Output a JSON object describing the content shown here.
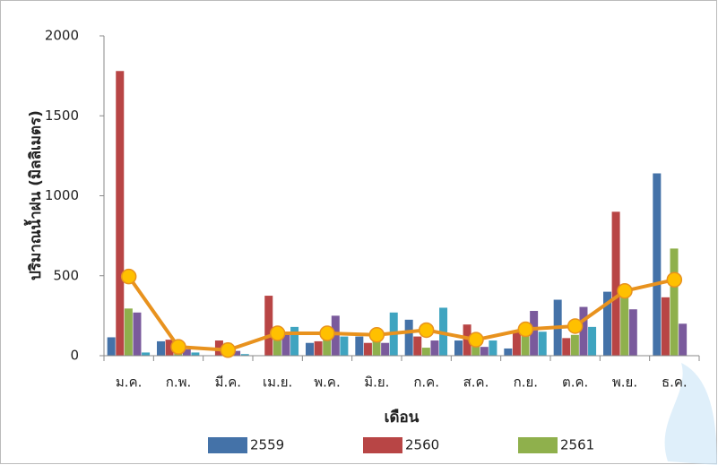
{
  "chart_data": {
    "type": "bar",
    "xlabel": "เดือน",
    "ylabel": "ปริมาณน้ำฝน (มิลลิเมตร)",
    "categories": [
      "ม.ค.",
      "ก.พ.",
      "มี.ค.",
      "เม.ย.",
      "พ.ค.",
      "มิ.ย.",
      "ก.ค.",
      "ส.ค.",
      "ก.ย.",
      "ต.ค.",
      "พ.ย.",
      "ธ.ค."
    ],
    "series": [
      {
        "name": "2559",
        "color": "#4472a8",
        "values": [
          115,
          90,
          0,
          0,
          80,
          120,
          225,
          95,
          45,
          350,
          400,
          1140
        ]
      },
      {
        "name": "2560",
        "color": "#b84545",
        "values": [
          1780,
          100,
          95,
          375,
          90,
          80,
          120,
          195,
          150,
          110,
          900,
          365
        ]
      },
      {
        "name": "2561",
        "color": "#8fb04c",
        "values": [
          295,
          50,
          80,
          100,
          110,
          100,
          50,
          60,
          160,
          130,
          390,
          670
        ]
      },
      {
        "color": "#7a5a9c",
        "values": [
          270,
          40,
          30,
          130,
          250,
          80,
          95,
          55,
          280,
          305,
          290,
          200
        ]
      },
      {
        "color": "#3fa4c0",
        "values": [
          20,
          20,
          10,
          180,
          120,
          270,
          300,
          95,
          150,
          180,
          0,
          0
        ]
      },
      {
        "type": "line",
        "color": "#e8921e",
        "marker_color": "#ffc000",
        "values": [
          495,
          55,
          35,
          140,
          140,
          130,
          160,
          100,
          165,
          185,
          405,
          475
        ]
      }
    ],
    "ylim": [
      0,
      2000
    ],
    "yticks": [
      0,
      500,
      1000,
      1500,
      2000
    ],
    "grid": false,
    "legend": "bottom"
  }
}
